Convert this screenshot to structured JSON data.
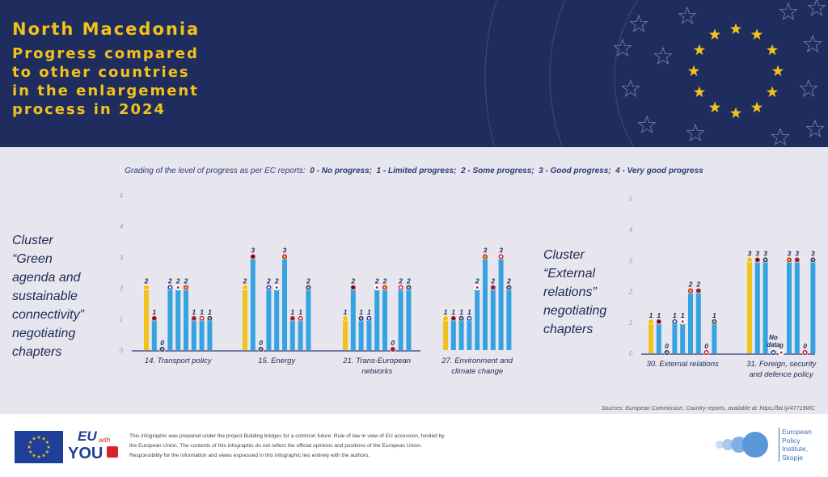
{
  "header": {
    "country": "North Macedonia",
    "subtitle_lines": [
      "Progress compared",
      "to other countries",
      "in the enlargement",
      "process in 2024"
    ]
  },
  "grading": {
    "prefix": "Grading of the level of progress as per EC reports:",
    "items": [
      "0 - No progress;",
      "1 - Limited progress;",
      "2 - Some progress;",
      "3 - Good progress;",
      "4 - Very good progress"
    ]
  },
  "clusters": {
    "green_lines": [
      "Cluster",
      "“Green",
      "agenda and",
      "sustainable",
      "connectivity”",
      "negotiating",
      "chapters"
    ],
    "external_lines": [
      "Cluster",
      "“External",
      "relations”",
      "negotiating",
      "chapters"
    ]
  },
  "colors": {
    "highlight": "#f2c21b",
    "bar": "#35a3e0",
    "text": "#1e2a55"
  },
  "chart_data": [
    {
      "type": "bar",
      "title": "",
      "ylim": [
        0,
        5
      ],
      "yticks": [
        "0",
        "1",
        "2",
        "3",
        "4",
        "5"
      ],
      "categories": [
        {
          "label_lines": [
            "14. Transport policy"
          ],
          "values": [
            2,
            1,
            0,
            2,
            2,
            2,
            1,
            1,
            1
          ],
          "labels": [
            "2",
            "1",
            "0",
            "2",
            "2",
            "2",
            "1",
            "1",
            "1"
          ]
        },
        {
          "label_lines": [
            "15. Energy"
          ],
          "values": [
            2,
            3,
            0,
            2,
            2,
            3,
            1,
            1,
            2
          ],
          "labels": [
            "2",
            "3",
            "0",
            "2",
            "2",
            "3",
            "1",
            "1",
            "2"
          ]
        },
        {
          "label_lines": [
            "21. Trans-European",
            "networks"
          ],
          "values": [
            1,
            2,
            1,
            1,
            2,
            2,
            0,
            2,
            2
          ],
          "labels": [
            "1",
            "2",
            "1",
            "1",
            "2",
            "2",
            "0",
            "2",
            "2"
          ]
        },
        {
          "label_lines": [
            "27. Environment and",
            "climate change"
          ],
          "values": [
            1,
            1,
            1,
            1,
            2,
            3,
            2,
            3,
            2
          ],
          "labels": [
            "1",
            "1",
            "1",
            "1",
            "2",
            "3",
            "2",
            "3",
            "2"
          ]
        }
      ]
    },
    {
      "type": "bar",
      "title": "",
      "ylim": [
        0,
        5
      ],
      "yticks": [
        "0",
        "1",
        "2",
        "3",
        "4",
        "5"
      ],
      "categories": [
        {
          "label_lines": [
            "30. External relations"
          ],
          "values": [
            1,
            1,
            0,
            1,
            1,
            2,
            2,
            0,
            1
          ],
          "labels": [
            "1",
            "1",
            "0",
            "1",
            "1",
            "2",
            "2",
            "0",
            "1"
          ]
        },
        {
          "label_lines": [
            "31. Foreign, security",
            "and defence policy"
          ],
          "values": [
            3,
            3,
            3,
            0,
            0,
            3,
            3,
            0,
            3
          ],
          "labels": [
            "3",
            "3",
            "3",
            "No data",
            "0",
            "3",
            "3",
            "0",
            "3"
          ]
        }
      ]
    }
  ],
  "sources": "Sources: European Commission, Country reports, available at: https://bit.ly/47719WC",
  "footer": {
    "euwy_line1": "EU",
    "euwy_line2": "with",
    "euwy_line3": "YOU",
    "disclaimer": "This infographic was prepared under the project Building bridges for a common future: Rule of law in view of EU accession, funded by the European Union. The contents of this infographic do not reflect the official opinions and positions of the European Union. Responsibility for the information and views expressed in this infographic lies entirely with the authors.",
    "epi_lines": [
      "European",
      "Policy",
      "Institute,",
      "Skopje"
    ]
  }
}
